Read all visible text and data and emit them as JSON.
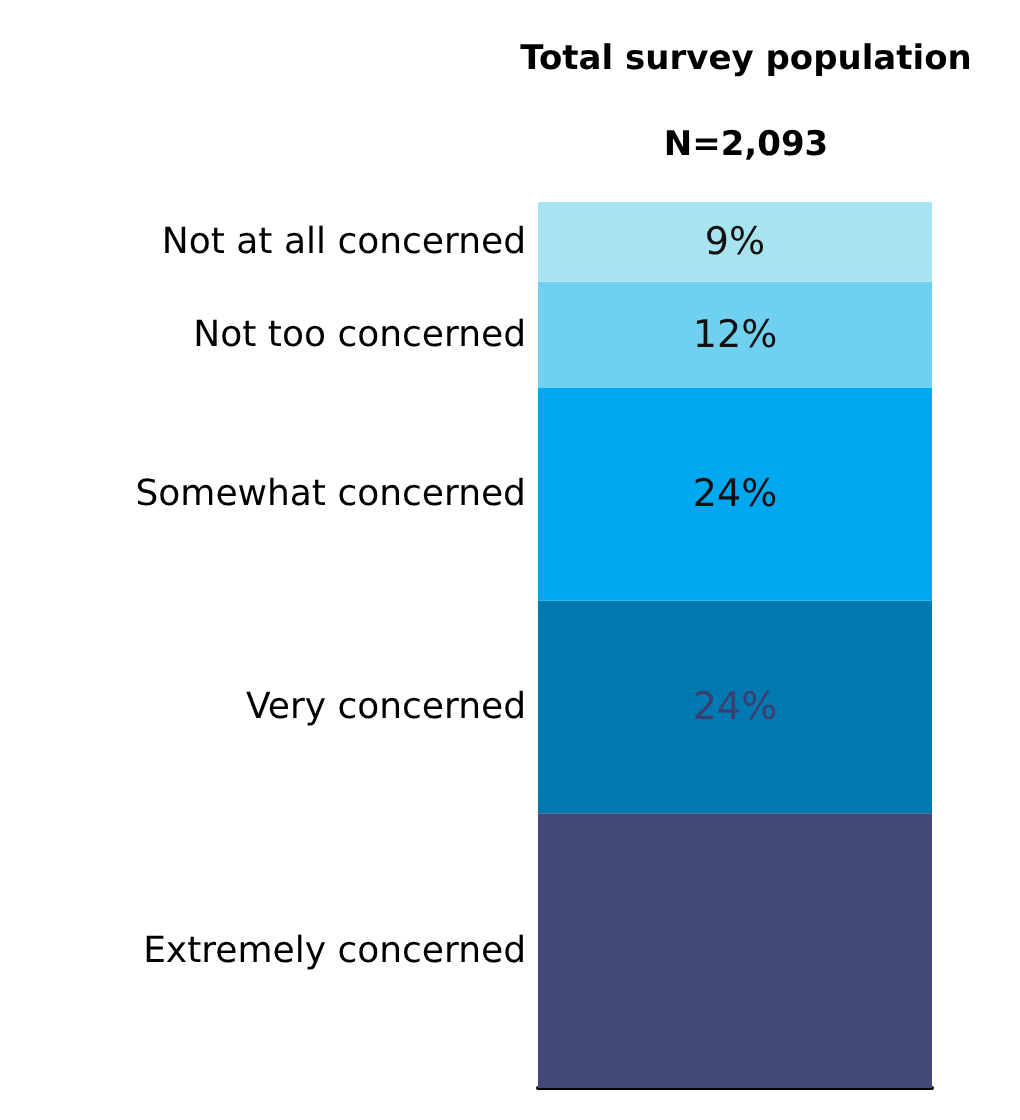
{
  "chart_data": {
    "type": "bar",
    "title": "Total survey population",
    "subtitle": "N=2,093",
    "categories": [
      null
    ],
    "stacked": true,
    "legend": false,
    "series": [
      {
        "name": "Extremely concerned",
        "color": "#434877",
        "values": [
          31
        ],
        "value_labels": [
          null
        ]
      },
      {
        "name": "Very concerned",
        "color": "#0079b0",
        "values": [
          24
        ],
        "value_labels": [
          "24%"
        ]
      },
      {
        "name": "Somewhat concerned",
        "color": "#00a8f0",
        "values": [
          24
        ],
        "value_labels": [
          "24%"
        ]
      },
      {
        "name": "Not too concerned",
        "color": "#6fd0f0",
        "values": [
          12
        ],
        "value_labels": [
          "12%"
        ]
      },
      {
        "name": "Not at all concerned",
        "color": "#a8e4f0",
        "values": [
          9
        ],
        "value_labels": [
          "9%"
        ]
      }
    ]
  }
}
